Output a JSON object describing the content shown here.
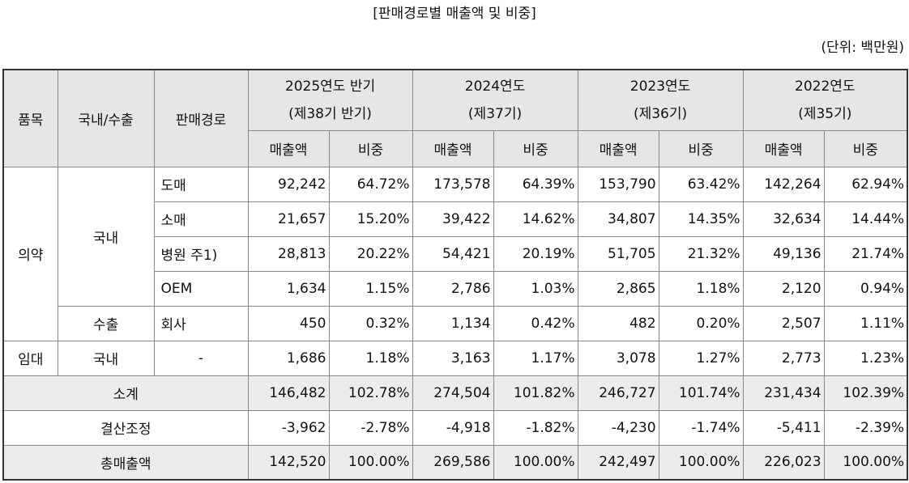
{
  "header": {
    "title": "[판매경로별 매출액 및 비중]",
    "unit": "(단위: 백만원)"
  },
  "table": {
    "head": {
      "item": "품목",
      "region": "국내/수출",
      "channel": "판매경로",
      "periods": [
        {
          "year": "2025연도 반기",
          "term": "(제38기 반기)",
          "columns": [
            "매출액",
            "비중"
          ]
        },
        {
          "year": "2024연도",
          "term": "(제37기)",
          "columns": [
            "매출액",
            "비중"
          ]
        },
        {
          "year": "2023연도",
          "term": "(제36기)",
          "columns": [
            "매출액",
            "비중"
          ]
        },
        {
          "year": "2022연도",
          "term": "(제35기)",
          "columns": [
            "매출액",
            "비중"
          ]
        }
      ]
    },
    "rows": [
      {
        "item": "의약",
        "region": "국내",
        "channel": "도매",
        "cells": [
          "92,242",
          "64.72%",
          "173,578",
          "64.39%",
          "153,790",
          "63.42%",
          "142,264",
          "62.94%"
        ]
      },
      {
        "channel": "소매",
        "cells": [
          "21,657",
          "15.20%",
          "39,422",
          "14.62%",
          "34,807",
          "14.35%",
          "32,634",
          "14.44%"
        ]
      },
      {
        "channel": "병원 주1)",
        "cells": [
          "28,813",
          "20.22%",
          "54,421",
          "20.19%",
          "51,705",
          "21.32%",
          "49,136",
          "21.74%"
        ]
      },
      {
        "channel": "OEM",
        "cells": [
          "1,634",
          "1.15%",
          "2,786",
          "1.03%",
          "2,865",
          "1.18%",
          "2,120",
          "0.94%"
        ]
      },
      {
        "region": "수출",
        "channel": "회사",
        "cells": [
          "450",
          "0.32%",
          "1,134",
          "0.42%",
          "482",
          "0.20%",
          "2,507",
          "1.11%"
        ]
      },
      {
        "item": "임대",
        "region": "국내",
        "channel": "-",
        "cells": [
          "1,686",
          "1.18%",
          "3,163",
          "1.17%",
          "3,078",
          "1.27%",
          "2,773",
          "1.23%"
        ]
      },
      {
        "label": "소계",
        "cells": [
          "146,482",
          "102.78%",
          "274,504",
          "101.82%",
          "246,727",
          "101.74%",
          "231,434",
          "102.39%"
        ]
      },
      {
        "label": "결산조정",
        "cells": [
          "-3,962",
          "-2.78%",
          "-4,918",
          "-1.82%",
          "-4,230",
          "-1.74%",
          "-5,411",
          "-2.39%"
        ]
      },
      {
        "label": "총매출액",
        "cells": [
          "142,520",
          "100.00%",
          "269,586",
          "100.00%",
          "242,497",
          "100.00%",
          "226,023",
          "100.00%"
        ]
      }
    ]
  }
}
